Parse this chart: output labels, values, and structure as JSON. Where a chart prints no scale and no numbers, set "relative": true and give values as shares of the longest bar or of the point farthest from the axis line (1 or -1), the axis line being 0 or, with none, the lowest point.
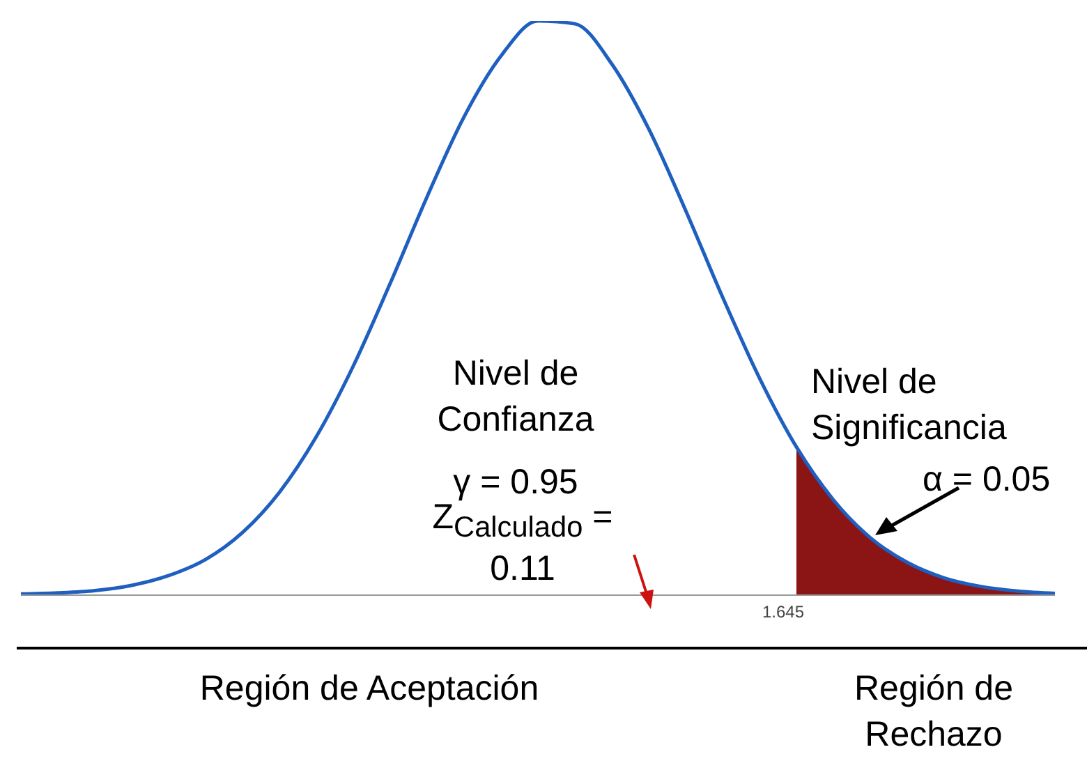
{
  "chart_data": {
    "type": "line",
    "relative": true,
    "categories": [
      null,
      null,
      null,
      null,
      null,
      null,
      null,
      null,
      null,
      null,
      null,
      null,
      null,
      null,
      null,
      null,
      null,
      null,
      null,
      null,
      null,
      null,
      null,
      null,
      null,
      null,
      null,
      null,
      null
    ],
    "series": [
      {
        "color": "#1f5fbf",
        "values": [
          0.002,
          0.004,
          0.008,
          0.017,
          0.034,
          0.062,
          0.109,
          0.179,
          0.276,
          0.399,
          0.543,
          0.694,
          0.833,
          0.939,
          1,
          0.995,
          0.925,
          0.812,
          0.67,
          0.519,
          0.378,
          0.258,
          0.166,
          0.1,
          0.057,
          0.03,
          0.015,
          0.007,
          0.003
        ]
      },
      {
        "type": "area",
        "color": "#8b1414",
        "values": [
          null,
          null,
          null,
          null,
          null,
          null,
          null,
          null,
          null,
          null,
          null,
          null,
          null,
          null,
          null,
          null,
          null,
          null,
          null,
          null,
          null,
          0.258,
          0.166,
          0.1,
          0.057,
          0.03,
          0.015,
          0.007,
          0.003
        ]
      }
    ],
    "annotations": [
      "Nivel de Confianza",
      "γ = 0.95",
      "Z$_{Calculado}$ = 0.11",
      "Nivel de Significancia",
      "α = 0.05",
      "Región de Aceptación",
      "Región de Rechazo",
      "1.645"
    ]
  }
}
